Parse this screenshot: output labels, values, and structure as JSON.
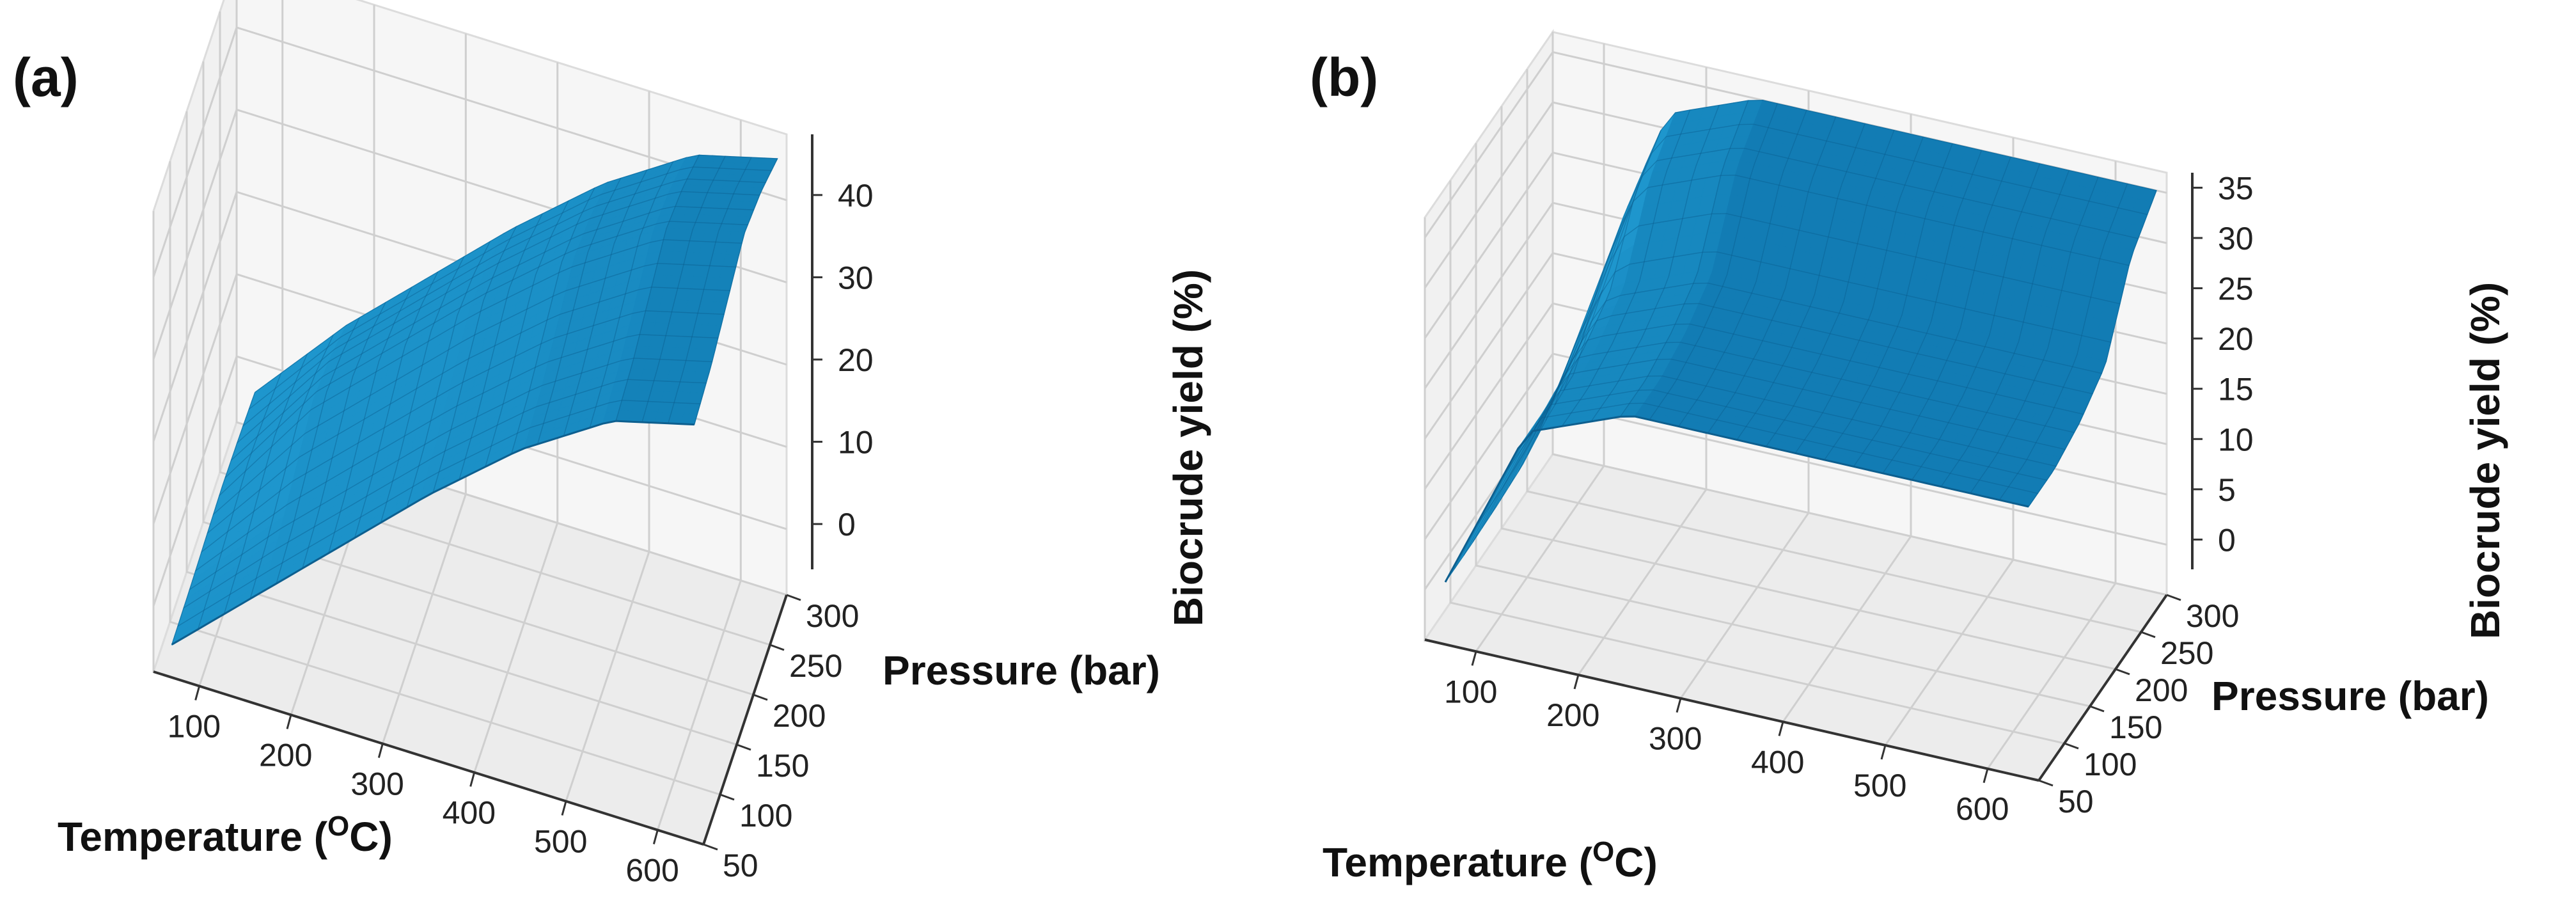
{
  "chart_data": [
    {
      "panel_label": "(a)",
      "type": "surface3d",
      "xlabel": "Temperature (",
      "xlabel_superscript": "O",
      "xlabel_suffix": "C)",
      "ylabel": "Pressure (bar)",
      "zlabel": "Biocrude yield (%)",
      "x_ticks": [
        "100",
        "200",
        "300",
        "400",
        "500",
        "600"
      ],
      "y_ticks": [
        "50",
        "100",
        "150",
        "200",
        "250",
        "300"
      ],
      "z_ticks": [
        "0",
        "10",
        "20",
        "30",
        "40"
      ],
      "xlim": [
        50,
        650
      ],
      "ylim": [
        50,
        300
      ],
      "zlim": [
        -8,
        48
      ],
      "surface_color": "#1a8cc4",
      "description_profile": "yield rises steadily with temperature, nearly independent of pressure",
      "temperature_profile": {
        "T": [
          50,
          150,
          250,
          350,
          450,
          550,
          650
        ],
        "yield": [
          -6,
          4,
          14,
          24,
          33,
          40,
          43
        ]
      },
      "pressure_effect": [
        0,
        1,
        3,
        5,
        4,
        2
      ]
    },
    {
      "panel_label": "(b)",
      "type": "surface3d",
      "xlabel": "Temperature (",
      "xlabel_superscript": "O",
      "xlabel_suffix": "C)",
      "ylabel": "Pressure (bar)",
      "zlabel": "Biocrude yield (%)",
      "x_ticks": [
        "100",
        "200",
        "300",
        "400",
        "500",
        "600"
      ],
      "y_ticks": [
        "50",
        "100",
        "150",
        "200",
        "250",
        "300"
      ],
      "z_ticks": [
        "0",
        "5",
        "10",
        "15",
        "20",
        "25",
        "30",
        "35"
      ],
      "xlim": [
        50,
        650
      ],
      "ylim": [
        50,
        300
      ],
      "zlim": [
        -5,
        37
      ],
      "surface_color": "#1a8cc4",
      "description_profile": "yield jumps sharply at low temperature then plateaus; increases with pressure near upper range",
      "temperature_profile": {
        "T": [
          50,
          150,
          250,
          350,
          450,
          550,
          650
        ],
        "yield": [
          -3,
          18,
          22,
          22,
          22,
          22,
          22
        ]
      },
      "pressure_effect": [
        0,
        0,
        1,
        3,
        10,
        13
      ]
    }
  ]
}
